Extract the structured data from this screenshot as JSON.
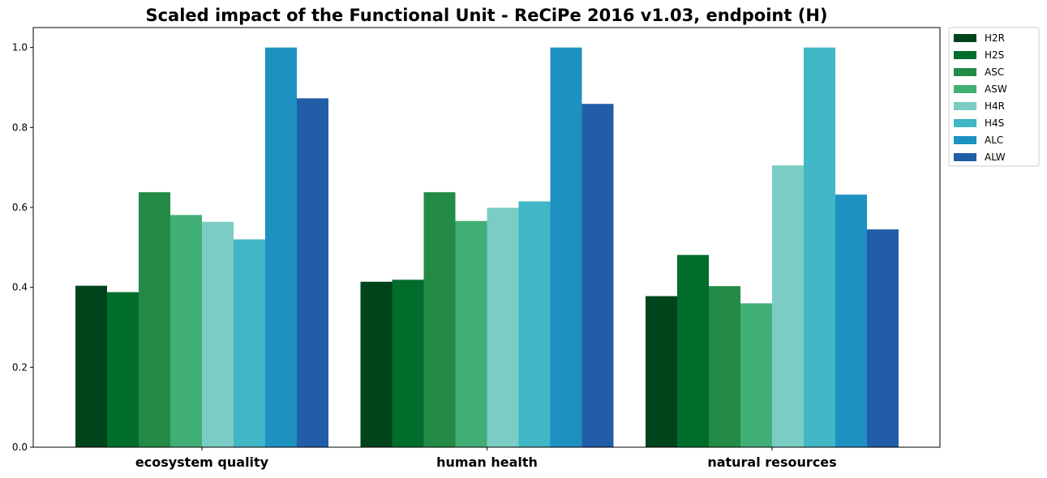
{
  "chart_data": {
    "type": "bar",
    "title": "Scaled impact of the Functional Unit - ReCiPe 2016 v1.03, endpoint (H)",
    "xlabel": "",
    "ylabel": "",
    "ylim": [
      0,
      1.05
    ],
    "yticks": [
      "0.0",
      "0.2",
      "0.4",
      "0.6",
      "0.8",
      "1.0"
    ],
    "categories": [
      "ecosystem quality",
      "human health",
      "natural resources"
    ],
    "legend_position": "outside-top-right",
    "grid": false,
    "series": [
      {
        "name": "H2R",
        "color": "#00441b",
        "values": [
          0.404,
          0.414,
          0.378
        ]
      },
      {
        "name": "H2S",
        "color": "#006d2c",
        "values": [
          0.388,
          0.419,
          0.481
        ]
      },
      {
        "name": "ASC",
        "color": "#238b45",
        "values": [
          0.638,
          0.638,
          0.403
        ]
      },
      {
        "name": "ASW",
        "color": "#41ae76",
        "values": [
          0.581,
          0.566,
          0.36
        ]
      },
      {
        "name": "H4R",
        "color": "#7bccc4",
        "values": [
          0.564,
          0.599,
          0.705
        ]
      },
      {
        "name": "H4S",
        "color": "#41b6c4",
        "values": [
          0.52,
          0.615,
          1.0
        ]
      },
      {
        "name": "ALC",
        "color": "#1d91c0",
        "values": [
          1.0,
          1.0,
          0.632
        ]
      },
      {
        "name": "ALW",
        "color": "#225ea8",
        "values": [
          0.873,
          0.859,
          0.545
        ]
      }
    ]
  }
}
